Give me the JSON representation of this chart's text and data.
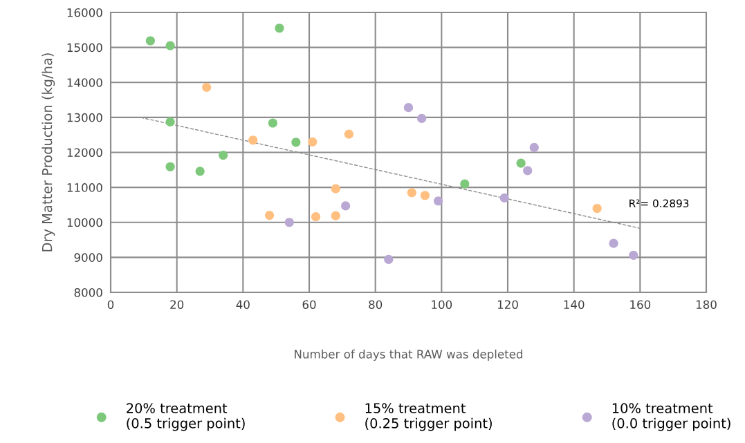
{
  "chart_data": {
    "type": "scatter",
    "xlabel": "Number of days that RAW was depleted",
    "ylabel": "Dry Matter Production (kg/ha)",
    "xlim": [
      0,
      180
    ],
    "xticks": [
      0,
      20,
      40,
      60,
      80,
      100,
      120,
      140,
      160,
      180
    ],
    "ylim": [
      8000,
      16000
    ],
    "yticks": [
      8000,
      9000,
      10000,
      11000,
      12000,
      13000,
      14000,
      15000,
      16000
    ],
    "grid": true,
    "legend": "bottom",
    "marker": "circle",
    "series": [
      {
        "name": "20% treatment\n(0.5 trigger point)",
        "color": "#7dc87b",
        "x": [
          12,
          18,
          51,
          18,
          49,
          56,
          34,
          18,
          27,
          107,
          124
        ],
        "values": [
          15190,
          15050,
          15550,
          12870,
          12840,
          12290,
          11920,
          11590,
          11460,
          11100,
          11690
        ]
      },
      {
        "name": "15% treatment\n(0.25 trigger point)",
        "color": "#ffbf80",
        "x": [
          29,
          43,
          61,
          48,
          62,
          72,
          68,
          68,
          91,
          95,
          147
        ],
        "values": [
          13860,
          12350,
          12300,
          10200,
          10160,
          12520,
          10960,
          10190,
          10850,
          10770,
          10400
        ]
      },
      {
        "name": "10% treatment\n(0.0 trigger point)",
        "color": "#b9a8d4",
        "x": [
          54,
          90,
          94,
          71,
          84,
          99,
          128,
          126,
          119,
          152,
          158
        ],
        "values": [
          10000,
          13280,
          12970,
          10470,
          8940,
          10610,
          12140,
          11480,
          10700,
          9400,
          9060
        ]
      },
      {
        "type": "line",
        "color": "#8c8c8c",
        "line_style": "dashed",
        "marker": "none",
        "x": [
          9,
          160
        ],
        "values": [
          13000,
          9830
        ]
      }
    ],
    "annotations": [
      {
        "text": "R²= 0.2893",
        "x": 160,
        "y": 9830
      }
    ]
  }
}
